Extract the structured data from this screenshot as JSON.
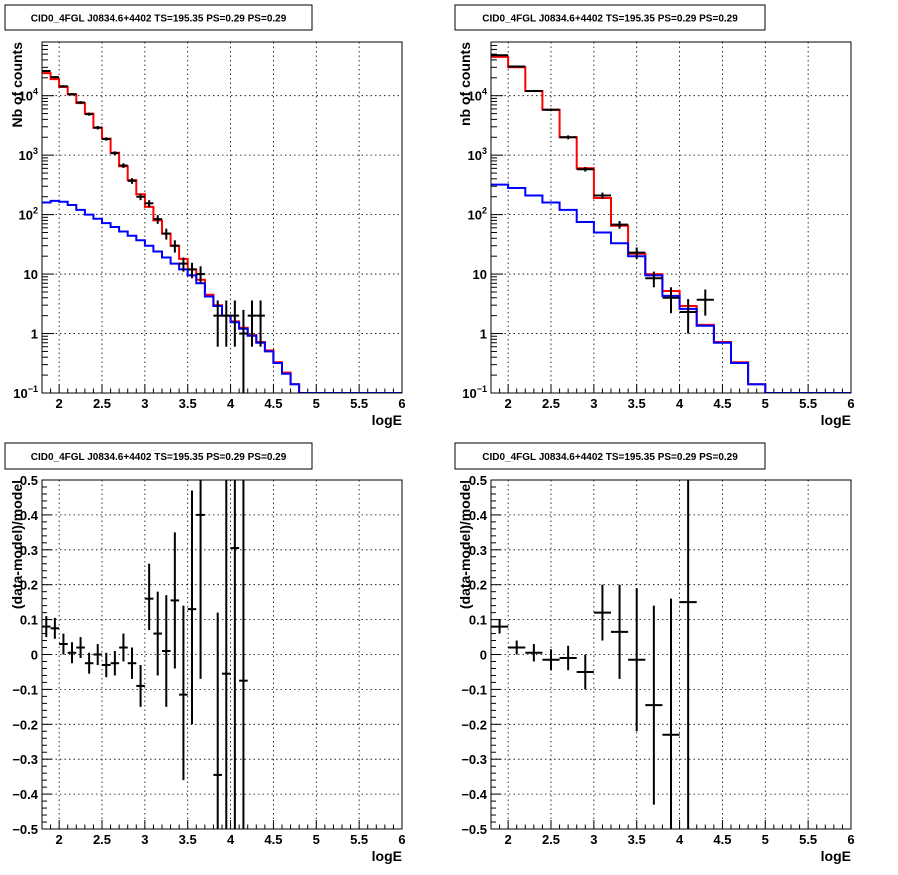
{
  "chart_data": [
    {
      "id": "top-left",
      "type": "line",
      "title": "CID0_4FGL J0834.6+4402 TS=195.35 PS=0.29 PS=0.29",
      "xlabel": "logE",
      "ylabel": "Nb of counts",
      "log_y": true,
      "xlim": [
        1.8,
        6.0
      ],
      "ylim": [
        0.1,
        80000
      ],
      "grid": true,
      "x_ticks": [
        2,
        2.5,
        3,
        3.5,
        4,
        4.5,
        5,
        5.5,
        6
      ],
      "y_ticks": [
        0.1,
        1,
        10,
        100,
        1000,
        10000
      ],
      "y_tick_labels": [
        "10^-1",
        "1",
        "10",
        "10^2",
        "10^3",
        "10^4"
      ],
      "bin_edges": [
        1.8,
        1.9,
        2.0,
        2.1,
        2.2,
        2.3,
        2.4,
        2.5,
        2.6,
        2.7,
        2.8,
        2.9,
        3.0,
        3.1,
        3.2,
        3.3,
        3.4,
        3.5,
        3.6,
        3.7,
        3.8,
        3.9,
        4.0,
        4.1,
        4.2,
        4.3,
        4.4,
        4.5,
        4.6,
        4.7,
        4.8,
        4.9,
        5.0,
        5.1,
        5.2,
        5.3,
        5.4,
        5.5,
        5.6,
        5.7,
        5.8,
        5.9,
        6.0
      ],
      "series": [
        {
          "color": "#ff0000",
          "step_values": [
            24000,
            19000,
            14000,
            10500,
            7500,
            5000,
            2900,
            1900,
            1100,
            650,
            380,
            220,
            135,
            80,
            48,
            30,
            18,
            12,
            8,
            4.5,
            3.0,
            2.0,
            1.6,
            1.25,
            0.95,
            0.72,
            0.52,
            0.33,
            0.22,
            0.14,
            0.1,
            0.1,
            0.1,
            0.1,
            0.1,
            0.1,
            0.1,
            0.1,
            0.1,
            0.1,
            0.1,
            0.1
          ]
        },
        {
          "color": "#0000ff",
          "step_values": [
            160,
            170,
            165,
            145,
            120,
            100,
            85,
            72,
            62,
            52,
            44,
            37,
            30,
            24,
            19,
            15,
            12,
            9.5,
            7,
            4.2,
            2.9,
            2.0,
            1.55,
            1.2,
            0.92,
            0.7,
            0.5,
            0.32,
            0.21,
            0.14,
            0.1,
            0.1,
            0.1,
            0.1,
            0.1,
            0.1,
            0.1,
            0.1,
            0.1,
            0.1,
            0.1,
            0.1
          ]
        }
      ],
      "points": [
        {
          "x": 1.85,
          "y": 26000,
          "lo": 25000,
          "hi": 27000,
          "xerr": 0.05
        },
        {
          "x": 1.95,
          "y": 20500,
          "lo": 19700,
          "hi": 21300,
          "xerr": 0.05
        },
        {
          "x": 2.05,
          "y": 14400,
          "lo": 13800,
          "hi": 15000,
          "xerr": 0.05
        },
        {
          "x": 2.15,
          "y": 10600,
          "lo": 10100,
          "hi": 11100,
          "xerr": 0.05
        },
        {
          "x": 2.25,
          "y": 7700,
          "lo": 7300,
          "hi": 8100,
          "xerr": 0.05
        },
        {
          "x": 2.35,
          "y": 4900,
          "lo": 4600,
          "hi": 5200,
          "xerr": 0.05
        },
        {
          "x": 2.45,
          "y": 2900,
          "lo": 2700,
          "hi": 3100,
          "xerr": 0.05
        },
        {
          "x": 2.55,
          "y": 1870,
          "lo": 1750,
          "hi": 1990,
          "xerr": 0.05
        },
        {
          "x": 2.65,
          "y": 1080,
          "lo": 1000,
          "hi": 1160,
          "xerr": 0.05
        },
        {
          "x": 2.75,
          "y": 670,
          "lo": 610,
          "hi": 730,
          "xerr": 0.05
        },
        {
          "x": 2.85,
          "y": 370,
          "lo": 330,
          "hi": 410,
          "xerr": 0.05
        },
        {
          "x": 2.95,
          "y": 200,
          "lo": 175,
          "hi": 225,
          "xerr": 0.05
        },
        {
          "x": 3.05,
          "y": 155,
          "lo": 135,
          "hi": 175,
          "xerr": 0.05
        },
        {
          "x": 3.15,
          "y": 84,
          "lo": 70,
          "hi": 98,
          "xerr": 0.05
        },
        {
          "x": 3.25,
          "y": 48,
          "lo": 38,
          "hi": 58,
          "xerr": 0.05
        },
        {
          "x": 3.35,
          "y": 30,
          "lo": 23,
          "hi": 37,
          "xerr": 0.05
        },
        {
          "x": 3.45,
          "y": 15,
          "lo": 11,
          "hi": 19,
          "xerr": 0.05
        },
        {
          "x": 3.55,
          "y": 12,
          "lo": 8.5,
          "hi": 15.5,
          "xerr": 0.05
        },
        {
          "x": 3.65,
          "y": 10,
          "lo": 7,
          "hi": 13.5,
          "xerr": 0.05
        },
        {
          "x": 3.85,
          "y": 2,
          "lo": 0.6,
          "hi": 3.6,
          "xerr": 0.05
        },
        {
          "x": 3.95,
          "y": 2,
          "lo": 0.6,
          "hi": 3.6,
          "xerr": 0.05
        },
        {
          "x": 4.05,
          "y": 2,
          "lo": 0.6,
          "hi": 3.6,
          "xerr": 0.05
        },
        {
          "x": 4.15,
          "y": 1,
          "lo": 0.1,
          "hi": 2.5,
          "xerr": 0.05
        },
        {
          "x": 4.25,
          "y": 2,
          "lo": 0.6,
          "hi": 3.6,
          "xerr": 0.05
        },
        {
          "x": 4.35,
          "y": 2,
          "lo": 0.6,
          "hi": 3.6,
          "xerr": 0.05
        }
      ]
    },
    {
      "id": "top-right",
      "type": "line",
      "title": "CID0_4FGL J0834.6+4402 TS=195.35 PS=0.29 PS=0.29",
      "xlabel": "logE",
      "ylabel": "nb of counts",
      "log_y": true,
      "xlim": [
        1.8,
        6.0
      ],
      "ylim": [
        0.1,
        80000
      ],
      "grid": true,
      "x_ticks": [
        2,
        2.5,
        3,
        3.5,
        4,
        4.5,
        5,
        5.5,
        6
      ],
      "y_ticks": [
        0.1,
        1,
        10,
        100,
        1000,
        10000
      ],
      "y_tick_labels": [
        "10^-1",
        "1",
        "10",
        "10^2",
        "10^3",
        "10^4"
      ],
      "bin_edges": [
        1.8,
        2.0,
        2.2,
        2.4,
        2.6,
        2.8,
        3.0,
        3.2,
        3.4,
        3.6,
        3.8,
        4.0,
        4.2,
        4.4,
        4.6,
        4.8,
        5.0,
        5.2,
        5.4,
        5.6,
        5.8,
        6.0
      ],
      "series": [
        {
          "color": "#ff0000",
          "step_values": [
            45000,
            30000,
            12000,
            5800,
            2000,
            600,
            190,
            65,
            22,
            10,
            5.2,
            2.9,
            1.4,
            0.72,
            0.33,
            0.14,
            0.1,
            0.1,
            0.1,
            0.1,
            0.1
          ]
        },
        {
          "color": "#0000ff",
          "step_values": [
            320,
            280,
            210,
            160,
            120,
            75,
            50,
            33,
            20,
            9.5,
            4.3,
            2.6,
            1.35,
            0.7,
            0.32,
            0.14,
            0.1,
            0.1,
            0.1,
            0.1,
            0.1
          ]
        }
      ],
      "points": [
        {
          "x": 1.9,
          "y": 48000,
          "lo": 46500,
          "hi": 49500,
          "xerr": 0.1
        },
        {
          "x": 2.1,
          "y": 31000,
          "lo": 30000,
          "hi": 32000,
          "xerr": 0.1
        },
        {
          "x": 2.3,
          "y": 12000,
          "lo": 11500,
          "hi": 12500,
          "xerr": 0.1
        },
        {
          "x": 2.5,
          "y": 5800,
          "lo": 5500,
          "hi": 6100,
          "xerr": 0.1
        },
        {
          "x": 2.7,
          "y": 2000,
          "lo": 1850,
          "hi": 2150,
          "xerr": 0.1
        },
        {
          "x": 2.9,
          "y": 580,
          "lo": 530,
          "hi": 630,
          "xerr": 0.1
        },
        {
          "x": 3.1,
          "y": 210,
          "lo": 185,
          "hi": 235,
          "xerr": 0.1
        },
        {
          "x": 3.3,
          "y": 68,
          "lo": 58,
          "hi": 78,
          "xerr": 0.1
        },
        {
          "x": 3.5,
          "y": 23,
          "lo": 18,
          "hi": 28,
          "xerr": 0.1
        },
        {
          "x": 3.7,
          "y": 8.5,
          "lo": 6,
          "hi": 11,
          "xerr": 0.1
        },
        {
          "x": 3.9,
          "y": 4,
          "lo": 2.2,
          "hi": 6,
          "xerr": 0.1
        },
        {
          "x": 4.1,
          "y": 2.3,
          "lo": 1.0,
          "hi": 3.8,
          "xerr": 0.1
        },
        {
          "x": 4.3,
          "y": 3.7,
          "lo": 2.0,
          "hi": 5.5,
          "xerr": 0.1
        }
      ]
    },
    {
      "id": "bottom-left",
      "type": "scatter",
      "title": "CID0_4FGL J0834.6+4402 TS=195.35 PS=0.29 PS=0.29",
      "xlabel": "logE",
      "ylabel": "(data-model)/model",
      "log_y": false,
      "xlim": [
        1.8,
        6.0
      ],
      "ylim": [
        -0.5,
        0.5
      ],
      "grid": true,
      "x_ticks": [
        2,
        2.5,
        3,
        3.5,
        4,
        4.5,
        5,
        5.5,
        6
      ],
      "y_ticks": [
        -0.5,
        -0.4,
        -0.3,
        -0.2,
        -0.1,
        0,
        0.1,
        0.2,
        0.3,
        0.4,
        0.5
      ],
      "y_tick_labels": [
        "−0.5",
        "−0.4",
        "−0.3",
        "−0.2",
        "−0.1",
        "0",
        "0.1",
        "0.2",
        "0.3",
        "0.4",
        "0.5"
      ],
      "points": [
        {
          "x": 1.85,
          "y": 0.08,
          "lo": 0.05,
          "hi": 0.11,
          "xerr": 0.05
        },
        {
          "x": 1.95,
          "y": 0.075,
          "lo": 0.045,
          "hi": 0.105,
          "xerr": 0.05
        },
        {
          "x": 2.05,
          "y": 0.03,
          "lo": 0.0,
          "hi": 0.06,
          "xerr": 0.05
        },
        {
          "x": 2.15,
          "y": 0.005,
          "lo": -0.025,
          "hi": 0.035,
          "xerr": 0.05
        },
        {
          "x": 2.25,
          "y": 0.02,
          "lo": -0.01,
          "hi": 0.05,
          "xerr": 0.05
        },
        {
          "x": 2.35,
          "y": -0.025,
          "lo": -0.055,
          "hi": 0.005,
          "xerr": 0.05
        },
        {
          "x": 2.45,
          "y": 0.0,
          "lo": -0.03,
          "hi": 0.03,
          "xerr": 0.05
        },
        {
          "x": 2.55,
          "y": -0.03,
          "lo": -0.065,
          "hi": 0.005,
          "xerr": 0.05
        },
        {
          "x": 2.65,
          "y": -0.025,
          "lo": -0.06,
          "hi": 0.01,
          "xerr": 0.05
        },
        {
          "x": 2.75,
          "y": 0.02,
          "lo": -0.02,
          "hi": 0.06,
          "xerr": 0.05
        },
        {
          "x": 2.85,
          "y": -0.025,
          "lo": -0.07,
          "hi": 0.02,
          "xerr": 0.05
        },
        {
          "x": 2.95,
          "y": -0.09,
          "lo": -0.15,
          "hi": -0.03,
          "xerr": 0.05
        },
        {
          "x": 3.05,
          "y": 0.16,
          "lo": 0.07,
          "hi": 0.26,
          "xerr": 0.05
        },
        {
          "x": 3.15,
          "y": 0.06,
          "lo": -0.06,
          "hi": 0.18,
          "xerr": 0.05
        },
        {
          "x": 3.25,
          "y": 0.01,
          "lo": -0.15,
          "hi": 0.17,
          "xerr": 0.05
        },
        {
          "x": 3.35,
          "y": 0.155,
          "lo": -0.04,
          "hi": 0.35,
          "xerr": 0.05
        },
        {
          "x": 3.45,
          "y": -0.115,
          "lo": -0.36,
          "hi": 0.14,
          "xerr": 0.05
        },
        {
          "x": 3.55,
          "y": 0.13,
          "lo": -0.2,
          "hi": 0.47,
          "xerr": 0.05
        },
        {
          "x": 3.65,
          "y": 0.4,
          "lo": -0.07,
          "hi": 0.5,
          "xerr": 0.05
        },
        {
          "x": 3.85,
          "y": -0.345,
          "lo": -0.5,
          "hi": 0.12,
          "xerr": 0.05
        },
        {
          "x": 3.95,
          "y": -0.055,
          "lo": -0.5,
          "hi": 0.5,
          "xerr": 0.05
        },
        {
          "x": 4.05,
          "y": 0.305,
          "lo": -0.5,
          "hi": 0.5,
          "xerr": 0.05
        },
        {
          "x": 4.15,
          "y": -0.075,
          "lo": -0.5,
          "hi": 0.5,
          "xerr": 0.05
        }
      ]
    },
    {
      "id": "bottom-right",
      "type": "scatter",
      "title": "CID0_4FGL J0834.6+4402 TS=195.35 PS=0.29 PS=0.29",
      "xlabel": "logE",
      "ylabel": "(data-model)/model",
      "log_y": false,
      "xlim": [
        1.8,
        6.0
      ],
      "ylim": [
        -0.5,
        0.5
      ],
      "grid": true,
      "x_ticks": [
        2,
        2.5,
        3,
        3.5,
        4,
        4.5,
        5,
        5.5,
        6
      ],
      "y_ticks": [
        -0.5,
        -0.4,
        -0.3,
        -0.2,
        -0.1,
        0,
        0.1,
        0.2,
        0.3,
        0.4,
        0.5
      ],
      "y_tick_labels": [
        "−0.5",
        "−0.4",
        "−0.3",
        "−0.2",
        "−0.1",
        "0",
        "0.1",
        "0.2",
        "0.3",
        "0.4",
        "0.5"
      ],
      "points": [
        {
          "x": 1.9,
          "y": 0.08,
          "lo": 0.06,
          "hi": 0.1,
          "xerr": 0.1
        },
        {
          "x": 2.1,
          "y": 0.02,
          "lo": 0.0,
          "hi": 0.04,
          "xerr": 0.1
        },
        {
          "x": 2.3,
          "y": 0.005,
          "lo": -0.02,
          "hi": 0.03,
          "xerr": 0.1
        },
        {
          "x": 2.5,
          "y": -0.015,
          "lo": -0.045,
          "hi": 0.015,
          "xerr": 0.1
        },
        {
          "x": 2.7,
          "y": -0.01,
          "lo": -0.045,
          "hi": 0.025,
          "xerr": 0.1
        },
        {
          "x": 2.9,
          "y": -0.05,
          "lo": -0.1,
          "hi": 0.0,
          "xerr": 0.1
        },
        {
          "x": 3.1,
          "y": 0.12,
          "lo": 0.04,
          "hi": 0.2,
          "xerr": 0.1
        },
        {
          "x": 3.3,
          "y": 0.065,
          "lo": -0.07,
          "hi": 0.2,
          "xerr": 0.1
        },
        {
          "x": 3.5,
          "y": -0.015,
          "lo": -0.22,
          "hi": 0.19,
          "xerr": 0.1
        },
        {
          "x": 3.7,
          "y": -0.145,
          "lo": -0.43,
          "hi": 0.14,
          "xerr": 0.1
        },
        {
          "x": 3.9,
          "y": -0.23,
          "lo": -0.5,
          "hi": 0.16,
          "xerr": 0.1
        },
        {
          "x": 4.1,
          "y": 0.15,
          "lo": -0.5,
          "hi": 0.5,
          "xerr": 0.1
        }
      ]
    }
  ]
}
